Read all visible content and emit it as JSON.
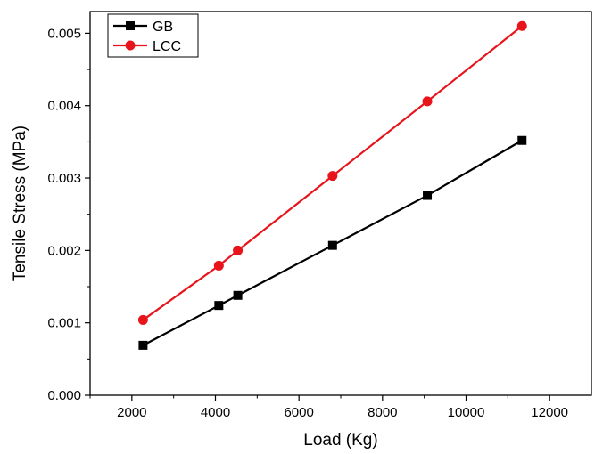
{
  "chart_data": {
    "type": "line",
    "title": "",
    "xlabel": "Load (Kg)",
    "ylabel": "Tensile Stress (MPa)",
    "xlim": [
      1000,
      13000
    ],
    "ylim": [
      0.0,
      0.0053
    ],
    "x_ticks": [
      "2000",
      "4000",
      "6000",
      "8000",
      "10000",
      "12000"
    ],
    "y_ticks": [
      "0.000",
      "0.001",
      "0.002",
      "0.003",
      "0.004",
      "0.005"
    ],
    "grid": false,
    "legend_position": "top-left",
    "series": [
      {
        "name": "GB",
        "color": "#000000",
        "marker": "square",
        "x": [
          2268,
          4082,
          4536,
          6804,
          9072,
          11340
        ],
        "y": [
          0.00069,
          0.00124,
          0.00138,
          0.00207,
          0.00276,
          0.00352
        ]
      },
      {
        "name": "LCC",
        "color": "#e8141b",
        "marker": "circle",
        "x": [
          2268,
          4082,
          4536,
          6804,
          9072,
          11340
        ],
        "y": [
          0.00104,
          0.00179,
          0.002,
          0.00303,
          0.00406,
          0.0051
        ]
      }
    ]
  }
}
